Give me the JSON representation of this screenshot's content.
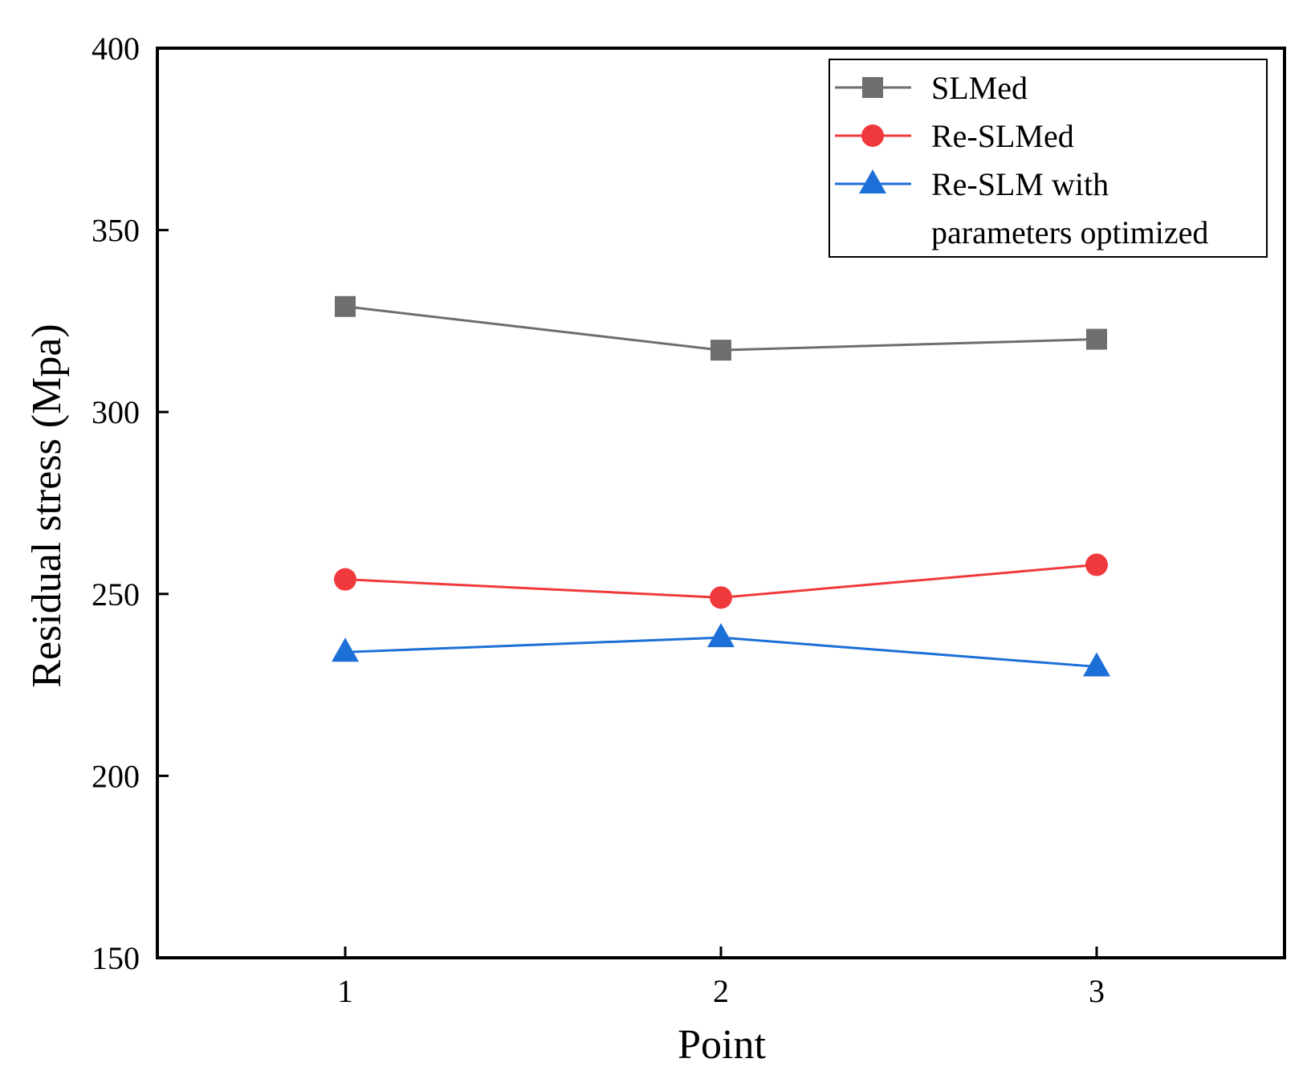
{
  "chart_data": {
    "type": "line",
    "title": "",
    "xlabel": "Point",
    "ylabel": "Residual stress (Mpa)",
    "categories": [
      "1",
      "2",
      "3"
    ],
    "x": [
      1,
      2,
      3
    ],
    "xlim": [
      0.5,
      3.5
    ],
    "ylim": [
      150,
      400
    ],
    "yticks": [
      150,
      200,
      250,
      300,
      350,
      400
    ],
    "legend_position": "top-right",
    "grid": false,
    "series": [
      {
        "name": "SLMed",
        "legend_lines": [
          "SLMed"
        ],
        "marker": "square",
        "color": "#6e6e6e",
        "values": [
          329,
          317,
          320
        ]
      },
      {
        "name": "Re-SLMed",
        "legend_lines": [
          "Re-SLMed"
        ],
        "marker": "circle",
        "color": "#f0393c",
        "values": [
          254,
          249,
          258
        ]
      },
      {
        "name": "Re-SLM with parameters optimized",
        "legend_lines": [
          "Re-SLM with",
          "parameters optimized"
        ],
        "marker": "triangle",
        "color": "#1c6fd6",
        "values": [
          234,
          238,
          230
        ]
      }
    ]
  }
}
